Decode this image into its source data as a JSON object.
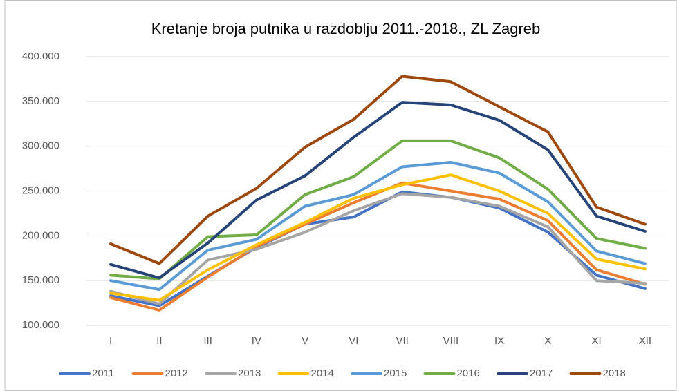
{
  "chart_data": {
    "type": "line",
    "title": "Kretanje broja putnika u razdoblju 2011.-2018., ZL Zagreb",
    "categories": [
      "I",
      "II",
      "III",
      "IV",
      "V",
      "VI",
      "VII",
      "VIII",
      "IX",
      "X",
      "XI",
      "XII"
    ],
    "series": [
      {
        "name": "2011",
        "color": "#4472c4",
        "values": [
          133000,
          122000,
          155000,
          187000,
          213000,
          221000,
          249000,
          243000,
          231000,
          204000,
          156000,
          141000
        ]
      },
      {
        "name": "2012",
        "color": "#ed7d31",
        "values": [
          131000,
          117000,
          154000,
          188000,
          213000,
          237000,
          259000,
          250000,
          241000,
          217000,
          162000,
          146000
        ]
      },
      {
        "name": "2013",
        "color": "#a5a5a5",
        "values": [
          138000,
          124000,
          173000,
          185000,
          204000,
          228000,
          247000,
          243000,
          233000,
          210000,
          150000,
          147000
        ]
      },
      {
        "name": "2014",
        "color": "#ffc000",
        "values": [
          136000,
          128000,
          162000,
          190000,
          215000,
          242000,
          257000,
          268000,
          250000,
          225000,
          174000,
          163000
        ]
      },
      {
        "name": "2015",
        "color": "#5b9bd5",
        "values": [
          150000,
          140000,
          184000,
          196000,
          233000,
          246000,
          277000,
          282000,
          270000,
          238000,
          183000,
          169000
        ]
      },
      {
        "name": "2016",
        "color": "#70ad47",
        "values": [
          156000,
          152000,
          199000,
          201000,
          246000,
          266000,
          306000,
          306000,
          287000,
          252000,
          197000,
          186000
        ]
      },
      {
        "name": "2017",
        "color": "#264478",
        "values": [
          168000,
          153000,
          192000,
          240000,
          267000,
          310000,
          349000,
          346000,
          329000,
          296000,
          222000,
          205000
        ]
      },
      {
        "name": "2018",
        "color": "#9e480e",
        "values": [
          191000,
          169000,
          222000,
          253000,
          299000,
          330000,
          378000,
          372000,
          344000,
          316000,
          232000,
          213000
        ]
      }
    ],
    "ylim": [
      100000,
      400000
    ],
    "yticks": [
      {
        "value": 100000,
        "label": "100.000"
      },
      {
        "value": 150000,
        "label": "150.000"
      },
      {
        "value": 200000,
        "label": "200.000"
      },
      {
        "value": 250000,
        "label": "250.000"
      },
      {
        "value": 300000,
        "label": "300.000"
      },
      {
        "value": 350000,
        "label": "350.000"
      },
      {
        "value": 400000,
        "label": "400.000"
      }
    ],
    "grid": true,
    "legend": "bottom"
  }
}
